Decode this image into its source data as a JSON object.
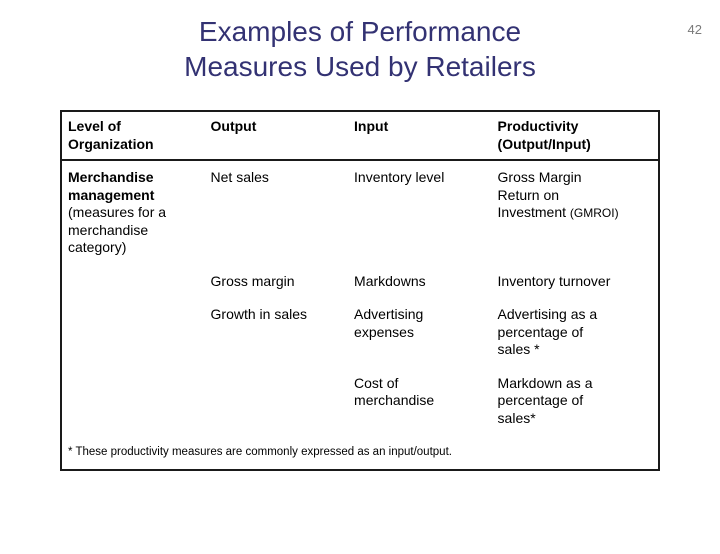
{
  "page_number": "42",
  "title_line1": "Examples of Performance",
  "title_line2": "Measures Used by Retailers",
  "colors": {
    "title": "#333273",
    "border": "#1a1a1a",
    "text": "#000000",
    "page_num": "#7a7a7a",
    "background": "#ffffff"
  },
  "header": {
    "col1_line1": "Level of",
    "col1_line2": "Organization",
    "col2": "Output",
    "col3": "Input",
    "col4_line1": "Productivity",
    "col4_line2": "(Output/Input)"
  },
  "rows": [
    {
      "c1_bold1": "Merchandise",
      "c1_bold2": "management",
      "c1_plain1": "(measures for a",
      "c1_plain2": "merchandise",
      "c1_plain3": "category)",
      "c2": "Net sales",
      "c3": "Inventory level",
      "c4_l1": "Gross Margin",
      "c4_l2": "Return on",
      "c4_l3_pre": "Investment ",
      "c4_l3_small": "(GMROI)"
    },
    {
      "c1": "",
      "c2": "Gross margin",
      "c3": "Markdowns",
      "c4": "Inventory turnover"
    },
    {
      "c1": "",
      "c2": "Growth in sales",
      "c3_l1": "Advertising",
      "c3_l2": "expenses",
      "c4_l1": "Advertising as a",
      "c4_l2": "percentage of",
      "c4_l3": "sales *"
    },
    {
      "c1": "",
      "c2": "",
      "c3_l1": "Cost of",
      "c3_l2": "merchandise",
      "c4_l1": "Markdown as a",
      "c4_l2": "percentage of",
      "c4_l3": "sales*"
    }
  ],
  "footnote": "* These productivity measures are commonly expressed as an input/output."
}
